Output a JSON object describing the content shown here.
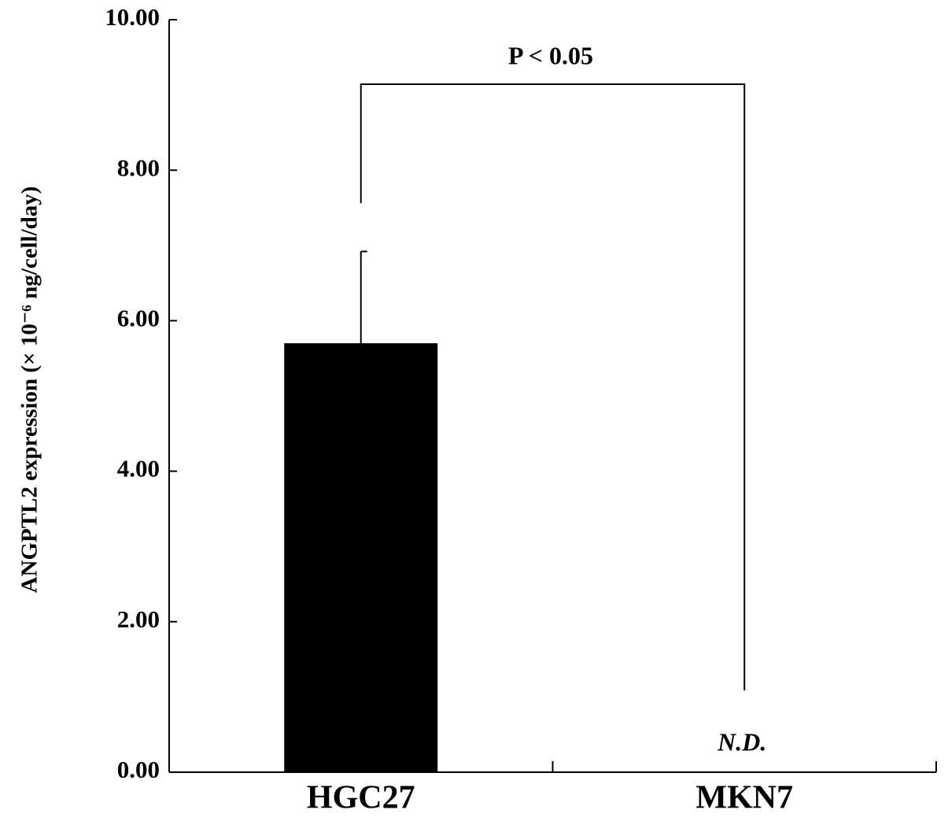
{
  "chart_data": {
    "type": "bar",
    "y_label": "ANGPTL2 expression (× 10⁻⁶ ng/cell/day)",
    "categories": [
      "HGC27",
      "MKN7"
    ],
    "values": [
      5.7,
      null
    ],
    "errors": [
      1.22,
      null
    ],
    "value_labels": [
      null,
      "N.D."
    ],
    "color": "#000000",
    "ylim": [
      0,
      10
    ],
    "yticks": [
      {
        "value": 0,
        "label": "0.00"
      },
      {
        "value": 2,
        "label": "2.00"
      },
      {
        "value": 4,
        "label": "4.00"
      },
      {
        "value": 6,
        "label": "6.00"
      },
      {
        "value": 8,
        "label": "8.00"
      },
      {
        "value": 10,
        "label": "10.00"
      }
    ],
    "annotation": "P < 0.05",
    "grid": false
  }
}
